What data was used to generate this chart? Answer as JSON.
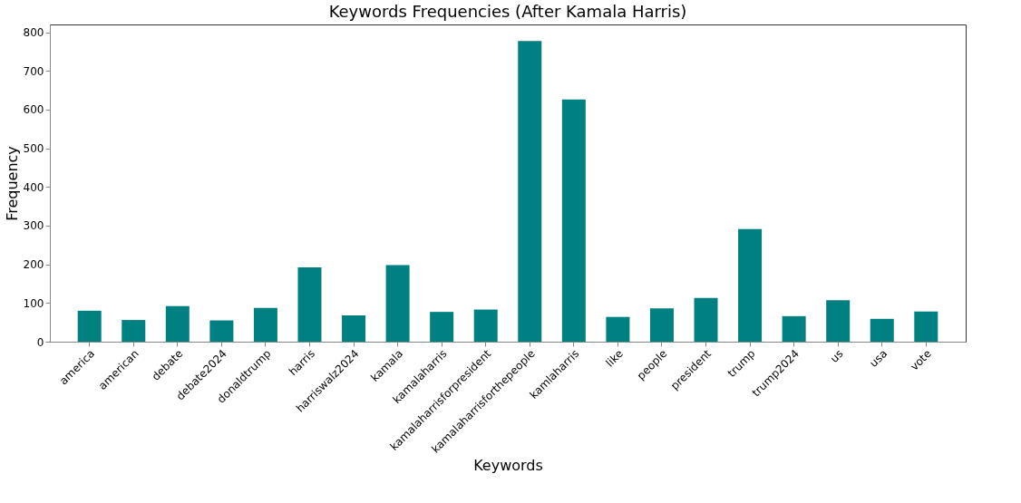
{
  "chart_data": {
    "type": "bar",
    "title": "Keywords Frequencies (After Kamala Harris)",
    "xlabel": "Keywords",
    "ylabel": "Frequency",
    "categories": [
      "america",
      "american",
      "debate",
      "debate2024",
      "donaldtrump",
      "harris",
      "harriswalz2024",
      "kamala",
      "kamalaharris",
      "kamalaharrisforpresident",
      "kamalaharrisforthepeople",
      "kamlaharris",
      "like",
      "people",
      "president",
      "trump",
      "trump2024",
      "us",
      "usa",
      "vote"
    ],
    "values": [
      80,
      56,
      92,
      55,
      87,
      192,
      68,
      198,
      77,
      83,
      777,
      626,
      64,
      86,
      113,
      291,
      66,
      107,
      59,
      78
    ],
    "color": "#008080",
    "ylim": [
      0,
      820
    ],
    "yticks": [
      0,
      100,
      200,
      300,
      400,
      500,
      600,
      700,
      800
    ],
    "grid": false
  }
}
